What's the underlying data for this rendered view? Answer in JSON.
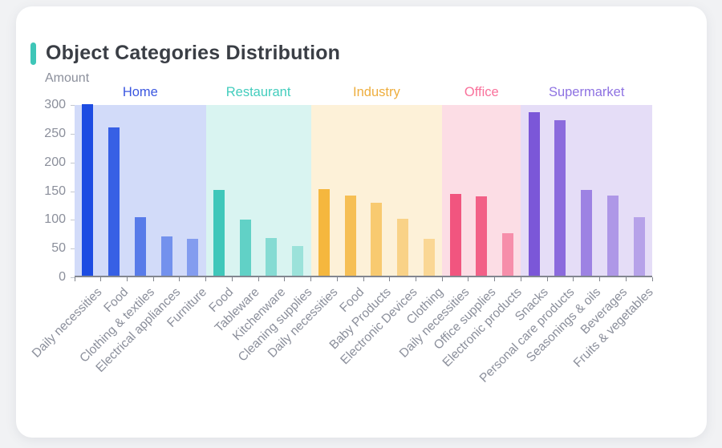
{
  "page": {
    "background": "#f1f2f4"
  },
  "card": {
    "background": "#ffffff"
  },
  "header": {
    "title": "Object Categories Distribution",
    "accent_color": "#3ec6b8",
    "title_color": "#3a3e45"
  },
  "chart_data": {
    "type": "bar",
    "title": "Object Categories Distribution",
    "xlabel": "",
    "ylabel": "Amount",
    "ylim": [
      0,
      300
    ],
    "yticks": [
      0,
      50,
      100,
      150,
      200,
      250,
      300
    ],
    "grid": false,
    "legend_position": "group-headers-above-bands",
    "axis_text_color": "#8b8f9b",
    "groups": [
      {
        "name": "Home",
        "header_color": "#3b57e0",
        "bar_color": "#1d4ce2",
        "categories": [
          "Daily necessities",
          "Food",
          "Clothing & textiles",
          "Electrical appliances",
          "Furniture"
        ],
        "values": [
          298,
          258,
          102,
          69,
          64
        ]
      },
      {
        "name": "Restaurant",
        "header_color": "#43cdbd",
        "bar_color": "#3fc7ba",
        "categories": [
          "Food",
          "Tableware",
          "Kitchenware",
          "Cleaning supplies"
        ],
        "values": [
          149,
          97,
          65,
          51
        ]
      },
      {
        "name": "Industry",
        "header_color": "#eeae3e",
        "bar_color": "#f5b73e",
        "categories": [
          "Daily necessities",
          "Food",
          "Baby Products",
          "Electronic Devices",
          "Clothing"
        ],
        "values": [
          151,
          139,
          127,
          99,
          64
        ]
      },
      {
        "name": "Office",
        "header_color": "#f9719b",
        "bar_color": "#f1557f",
        "categories": [
          "Daily necessities",
          "Office supplies",
          "Electronic products"
        ],
        "values": [
          143,
          138,
          74
        ]
      },
      {
        "name": "Supermarket",
        "header_color": "#8e72e2",
        "bar_color": "#7b57d8",
        "categories": [
          "Snacks",
          "Personal care products",
          "Seasonings & oils",
          "Beverages",
          "Fruits & vegetables"
        ],
        "values": [
          285,
          271,
          149,
          140,
          102
        ]
      }
    ]
  }
}
